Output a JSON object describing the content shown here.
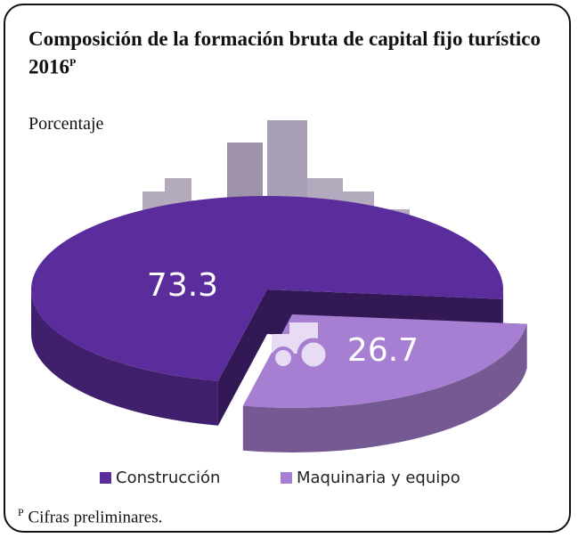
{
  "chart_data": {
    "type": "pie",
    "title": "Composición de la formación bruta de capital fijo turístico",
    "year": "2016",
    "year_mark": "P",
    "subtitle": "Porcentaje",
    "categories": [
      "Construcción",
      "Maquinaria y equipo"
    ],
    "values": [
      73.3,
      26.7
    ],
    "colors": [
      "#5b2d9c",
      "#a77fd2"
    ],
    "note_mark": "P",
    "note": "Cifras preliminares."
  }
}
